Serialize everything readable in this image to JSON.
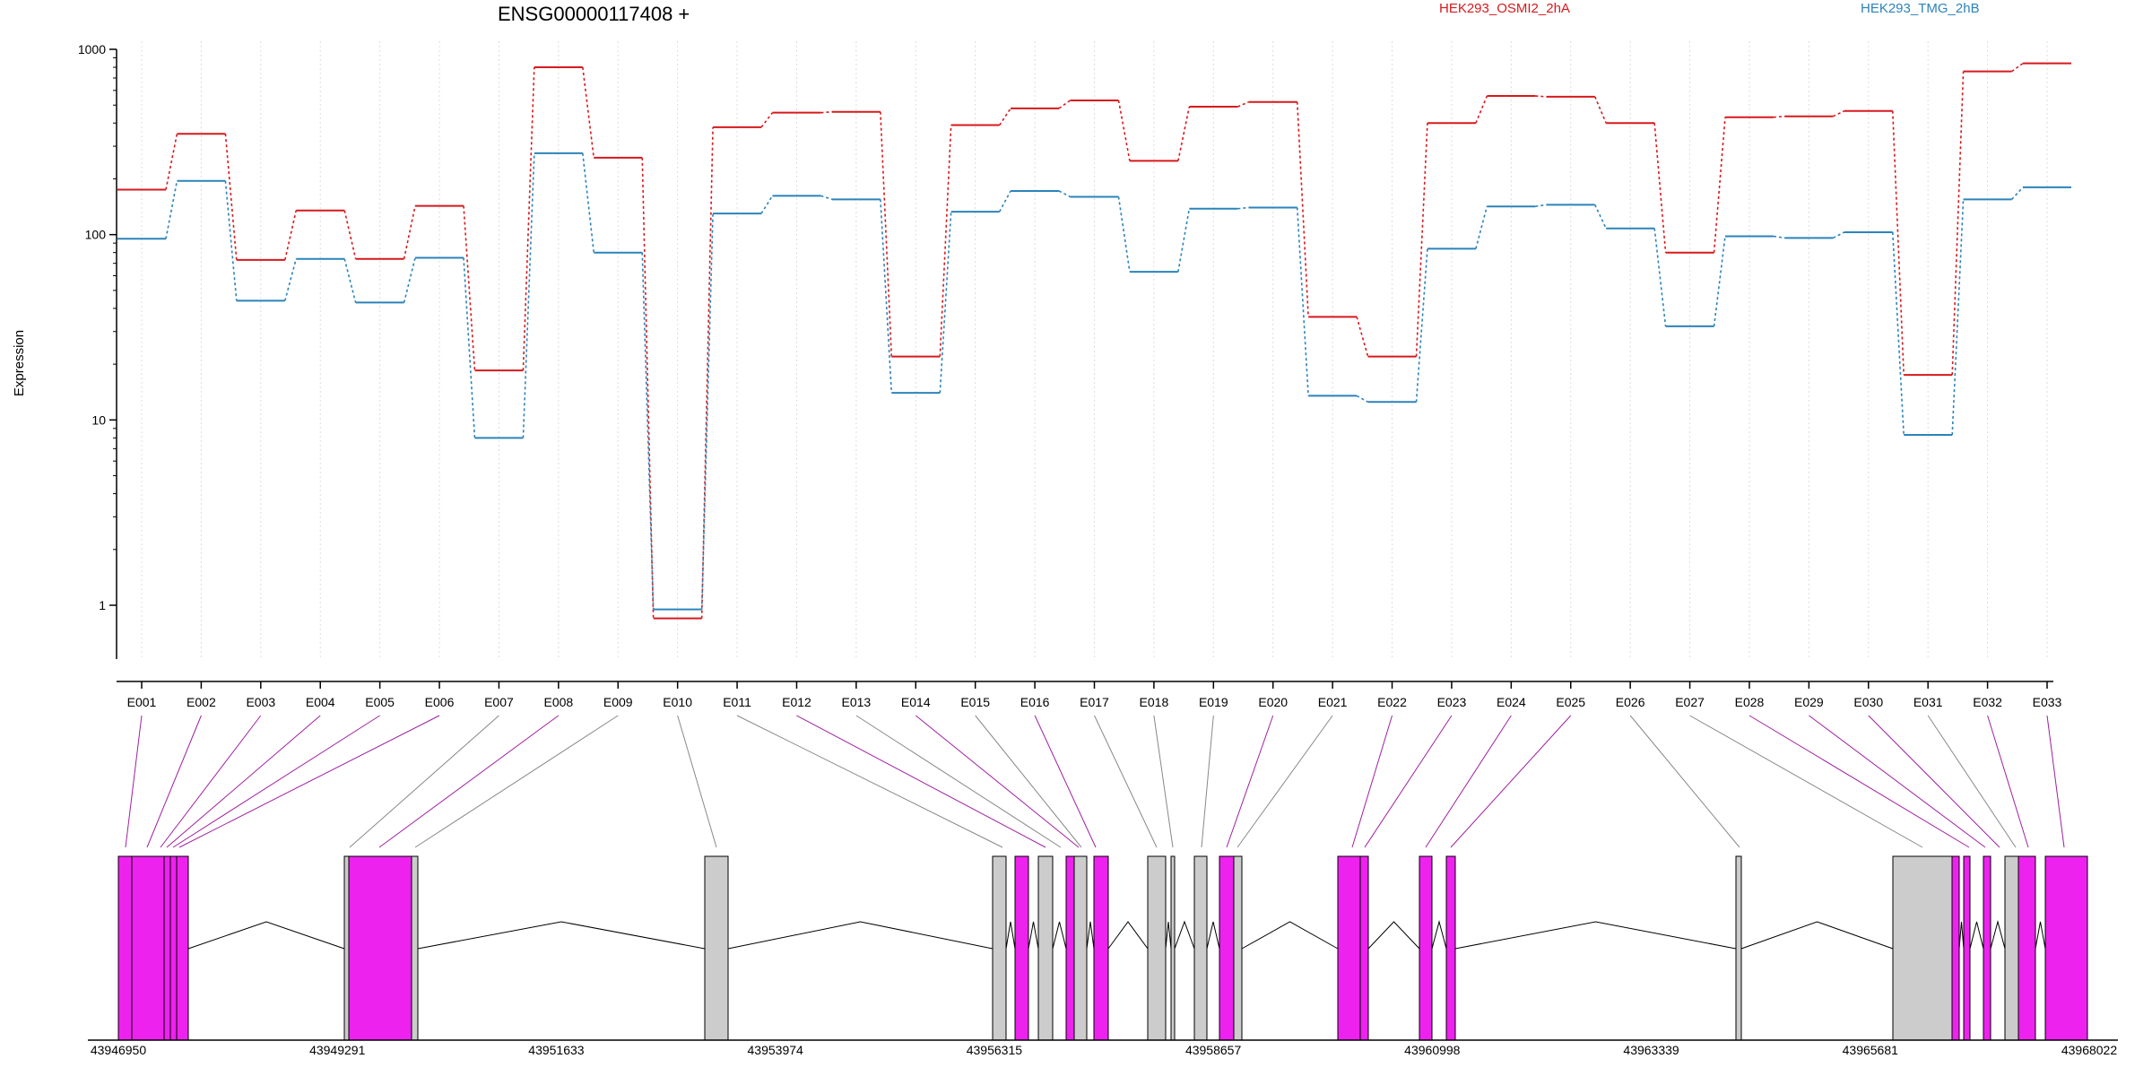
{
  "chart_data": {
    "type": "line",
    "title": "ENSG00000117408 +",
    "ylabel": "Expression",
    "xlabel": "",
    "yscale": "log",
    "ylim": [
      0.4,
      1000
    ],
    "yticks": [
      "1",
      "10",
      "100",
      "1000"
    ],
    "grid": "vertical dotted at each exon",
    "legend_position": "top, above plot",
    "categories": [
      "E001",
      "E002",
      "E003",
      "E004",
      "E005",
      "E006",
      "E007",
      "E008",
      "E009",
      "E010",
      "E011",
      "E012",
      "E013",
      "E014",
      "E015",
      "E016",
      "E017",
      "E018",
      "E019",
      "E020",
      "E021",
      "E022",
      "E023",
      "E024",
      "E025",
      "E026",
      "E027",
      "E028",
      "E029",
      "E030",
      "E031",
      "E032",
      "E033"
    ],
    "series": [
      {
        "name": "HEK293_OSMI2_2hA",
        "color": "#d7191c",
        "values": [
          175,
          350,
          73,
          135,
          74,
          143,
          18.5,
          800,
          260,
          0.85,
          380,
          455,
          460,
          22,
          390,
          480,
          530,
          250,
          490,
          520,
          36,
          22,
          400,
          560,
          555,
          400,
          80,
          430,
          435,
          465,
          17.5,
          760,
          840
        ]
      },
      {
        "name": "HEK293_TMG_2hB",
        "color": "#2b83ba",
        "values": [
          95,
          195,
          44,
          74,
          43,
          75,
          8,
          275,
          80,
          0.95,
          130,
          162,
          155,
          14,
          133,
          172,
          160,
          63,
          138,
          140,
          13.5,
          12.5,
          84,
          142,
          145,
          108,
          32,
          98,
          96,
          103,
          8.3,
          155,
          180
        ]
      }
    ]
  },
  "gene_model": {
    "coordinate_labels": [
      "43946950",
      "43949291",
      "43951633",
      "43953974",
      "43956315",
      "43958657",
      "43960998",
      "43963339",
      "43965681",
      "43968022"
    ],
    "colors": {
      "highlighted_exon": "#ee22ee",
      "exon": "#cccccc",
      "intron": "#000000",
      "highlight_connector": "#a020a0",
      "plain_connector": "#888888"
    }
  }
}
